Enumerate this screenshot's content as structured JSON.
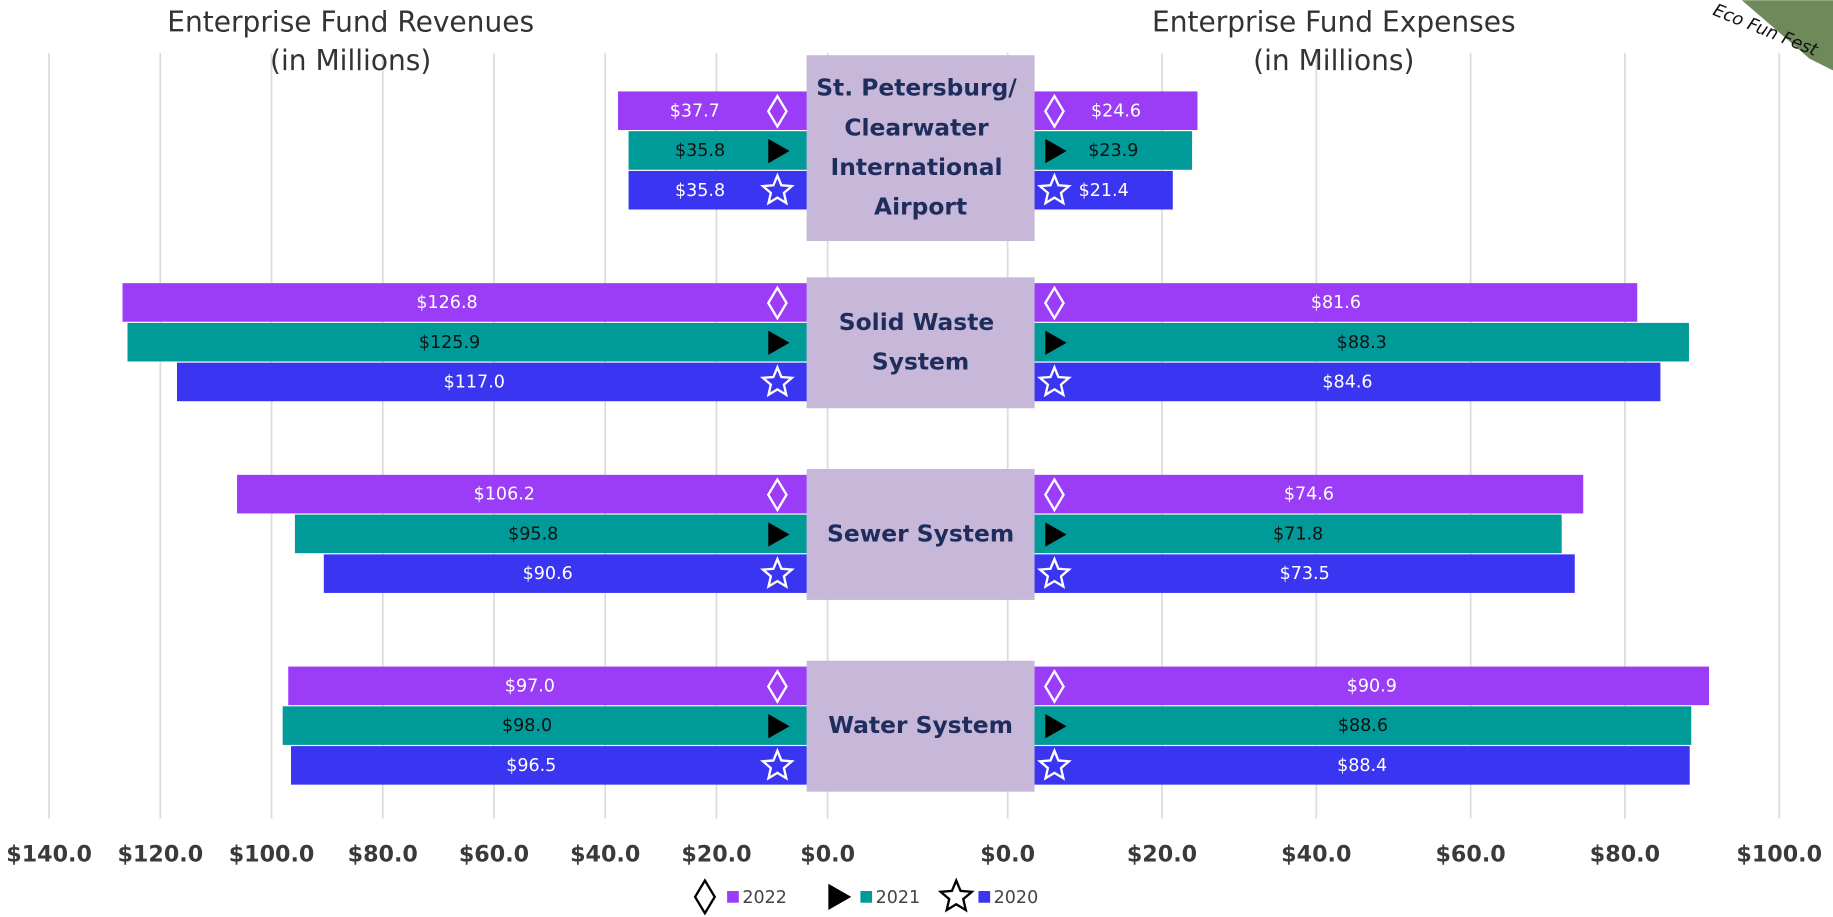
{
  "badge": "Eco Fun Fest",
  "chart_data": [
    {
      "type": "bar",
      "orientation": "horizontal",
      "title": "Enterprise Fund Revenues",
      "subtitle": "(in Millions)",
      "categories": [
        "St. Petersburg/ Clearwater International Airport",
        "Solid Waste System",
        "Sewer System",
        "Water System"
      ],
      "xlim": [
        140,
        0
      ],
      "xticks": [
        {
          "value": 140,
          "label": "$140.0"
        },
        {
          "value": 120,
          "label": "$120.0"
        },
        {
          "value": 100,
          "label": "$100.0"
        },
        {
          "value": 80,
          "label": "$80.0"
        },
        {
          "value": 60,
          "label": "$60.0"
        },
        {
          "value": 40,
          "label": "$40.0"
        },
        {
          "value": 20,
          "label": "$20.0"
        },
        {
          "value": 0,
          "label": "$0.0"
        }
      ],
      "grid": true,
      "series": [
        {
          "name": "2022",
          "color": "#9b3cf6",
          "label_color": "#ffffff",
          "marker": "diamond",
          "values": [
            37.7,
            126.8,
            106.2,
            97.0
          ],
          "value_labels": [
            "$37.7",
            "$126.8",
            "$106.2",
            "$97.0"
          ]
        },
        {
          "name": "2021",
          "color": "#009a98",
          "label_color": "#111111",
          "marker": "triangle",
          "values": [
            35.8,
            125.9,
            95.8,
            98.0
          ],
          "value_labels": [
            "$35.8",
            "$125.9",
            "$95.8",
            "$98.0"
          ]
        },
        {
          "name": "2020",
          "color": "#3a35f0",
          "label_color": "#ffffff",
          "marker": "star",
          "values": [
            35.8,
            117.0,
            90.6,
            96.5
          ],
          "value_labels": [
            "$35.8",
            "$117.0",
            "$90.6",
            "$96.5"
          ]
        }
      ]
    },
    {
      "type": "bar",
      "orientation": "horizontal",
      "title": "Enterprise Fund Expenses",
      "subtitle": "(in Millions)",
      "xlim": [
        0,
        100
      ],
      "xticks": [
        {
          "value": 0,
          "label": "$0.0"
        },
        {
          "value": 20,
          "label": "$20.0"
        },
        {
          "value": 40,
          "label": "$40.0"
        },
        {
          "value": 60,
          "label": "$60.0"
        },
        {
          "value": 80,
          "label": "$80.0"
        },
        {
          "value": 100,
          "label": "$100.0"
        }
      ],
      "grid": true,
      "series": [
        {
          "color": "#9b3cf6",
          "values": [
            24.6,
            81.6,
            74.6,
            90.9
          ],
          "value_labels": [
            "$24.6",
            "$81.6",
            "$74.6",
            "$90.9"
          ]
        },
        {
          "color": "#009a98",
          "values": [
            23.9,
            88.3,
            71.8,
            88.6
          ],
          "value_labels": [
            "$23.9",
            "$88.3",
            "$71.8",
            "$88.6"
          ]
        },
        {
          "color": "#3a35f0",
          "values": [
            21.4,
            84.6,
            73.5,
            88.4
          ],
          "value_labels": [
            "$21.4",
            "$84.6",
            "$73.5",
            "$88.4"
          ]
        }
      ]
    }
  ]
}
